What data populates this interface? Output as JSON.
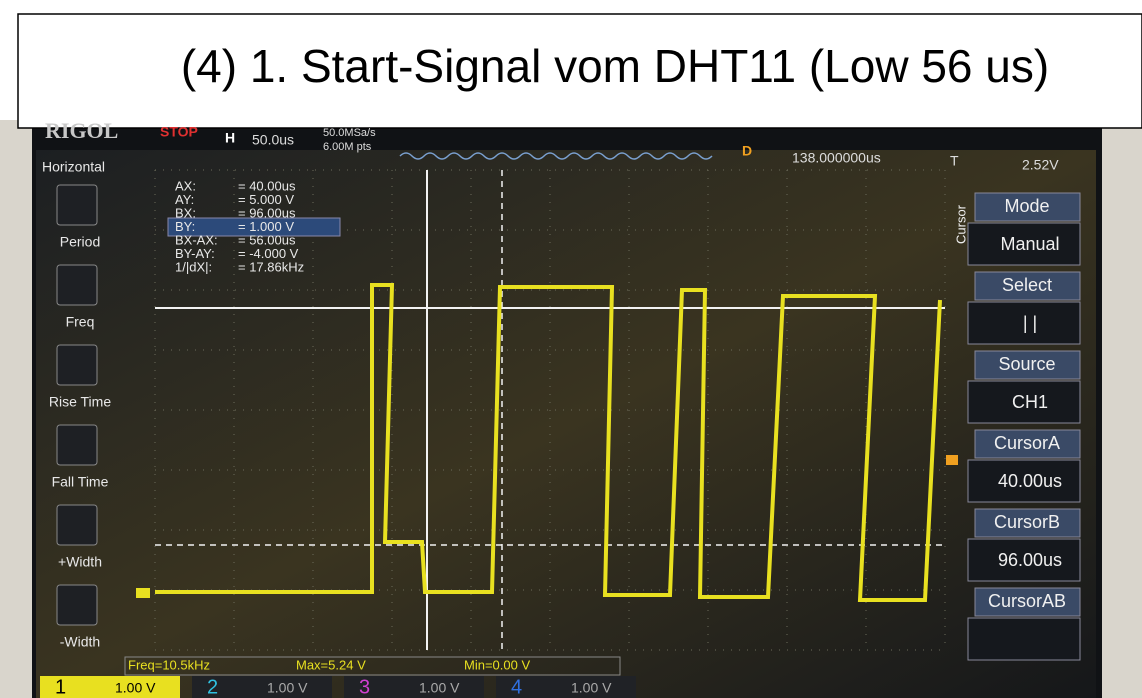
{
  "title": "(4) 1. Start-Signal vom DHT11 (Low 56 us)",
  "top_bar": {
    "brand": "RIGOL",
    "status": "STOP",
    "timebase_label": "H",
    "timebase": "50.0us",
    "sample_rate": "50.0MSa/s",
    "memory": "6.00M pts",
    "delay_label": "D",
    "delay": "138.000000us",
    "trigger_label": "T",
    "trigger_level": "2.52V"
  },
  "left_menu": {
    "title": "Horizontal",
    "items": [
      "Period",
      "Freq",
      "Rise Time",
      "Fall Time",
      "+Width",
      "-Width"
    ]
  },
  "cursor_readout": [
    [
      "AX:",
      "= 40.00us"
    ],
    [
      "AY:",
      "= 5.000 V"
    ],
    [
      "BX:",
      "= 96.00us"
    ],
    [
      "BY:",
      "= 1.000 V"
    ],
    [
      "BX-AX:",
      "= 56.00us"
    ],
    [
      "BY-AY:",
      "= -4.000 V"
    ],
    [
      "1/|dX|:",
      "= 17.86kHz"
    ]
  ],
  "right_menu": {
    "title": "Cursor",
    "items": [
      {
        "label": "Mode",
        "value": "Manual"
      },
      {
        "label": "Select",
        "value": "| |"
      },
      {
        "label": "Source",
        "value": "CH1"
      },
      {
        "label": "CursorA",
        "value": "40.00us"
      },
      {
        "label": "CursorB",
        "value": "96.00us"
      },
      {
        "label": "CursorAB"
      }
    ]
  },
  "measurements": [
    "Freq=10.5kHz",
    "Max=5.24 V",
    "Min=0.00 V"
  ],
  "channels": [
    {
      "number": "1",
      "scale": "1.00 V"
    },
    {
      "number": "2",
      "scale": "1.00 V"
    },
    {
      "number": "3",
      "scale": "1.00 V"
    },
    {
      "number": "4",
      "scale": "1.00 V"
    }
  ]
}
